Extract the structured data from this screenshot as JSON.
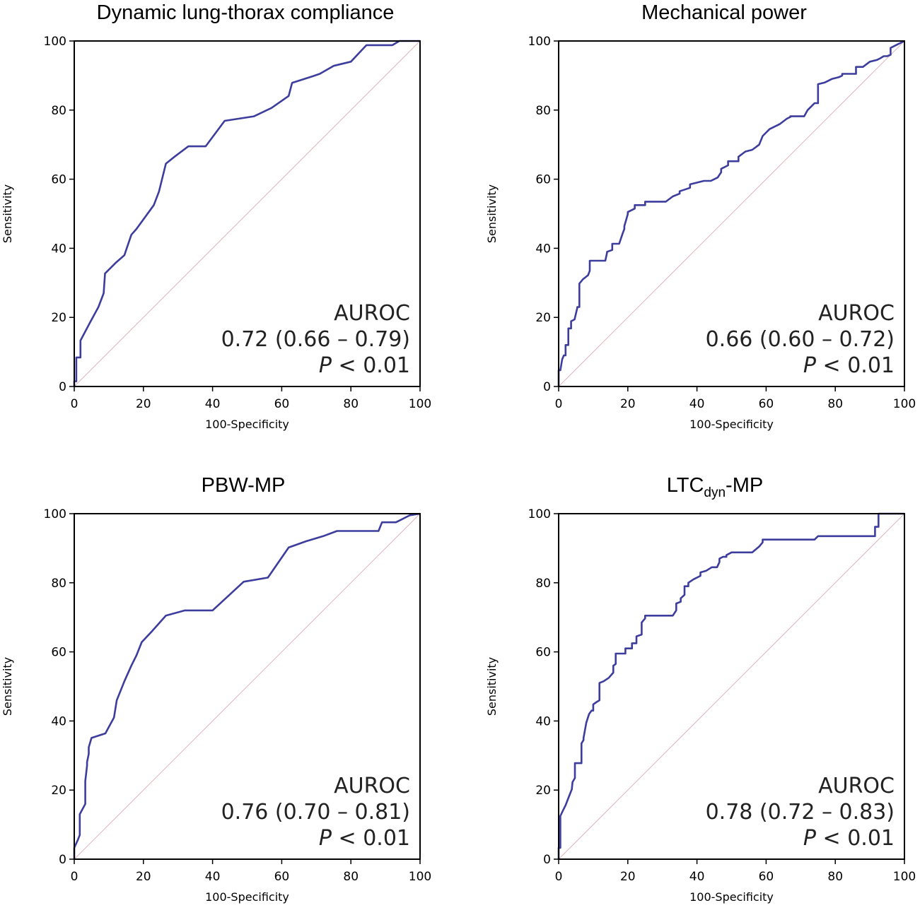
{
  "colors": {
    "roc": "#3d3d9e",
    "reference": "#e0b8c0"
  },
  "chart_data": [
    {
      "type": "line",
      "title": "Dynamic lung-thorax compliance",
      "xlabel": "100-Specificity",
      "ylabel": "Sensitivity",
      "xlim": [
        0,
        100
      ],
      "ylim": [
        0,
        100
      ],
      "xticks": [
        "0",
        "20",
        "40",
        "60",
        "80",
        "100"
      ],
      "yticks": [
        "0",
        "20",
        "40",
        "60",
        "80",
        "100"
      ],
      "annotation": {
        "label": "AUROC",
        "value": "0.72 (0.66 – 0.79)",
        "p_symbol": "P",
        "p_rest": " < 0.01"
      },
      "series": [
        {
          "name": "ROC",
          "x": [
            0,
            0,
            0.6,
            0.6,
            1.8,
            1.8,
            4.5,
            7,
            8.5,
            8.9,
            12,
            14.5,
            16.5,
            18,
            23,
            24.5,
            26.5,
            29,
            33,
            38,
            43.5,
            52,
            57,
            62,
            63,
            69,
            71,
            75,
            80,
            84.5,
            92,
            94,
            100
          ],
          "y": [
            0,
            1.5,
            1.5,
            8.4,
            8.4,
            13.3,
            18.4,
            23,
            27,
            32.7,
            35.8,
            38,
            43.9,
            45.6,
            52.5,
            56.4,
            64.5,
            66.5,
            69.5,
            69.5,
            76.9,
            78.2,
            80.6,
            84.1,
            87.9,
            89.8,
            90.5,
            92.8,
            94,
            98.8,
            98.8,
            100,
            100
          ]
        },
        {
          "name": "reference",
          "x": [
            0,
            100
          ],
          "y": [
            0,
            100
          ]
        }
      ]
    },
    {
      "type": "line",
      "title": "Mechanical power",
      "xlabel": "100-Specificity",
      "ylabel": "Sensitivity",
      "xlim": [
        0,
        100
      ],
      "ylim": [
        0,
        100
      ],
      "xticks": [
        "0",
        "20",
        "40",
        "60",
        "80",
        "100"
      ],
      "yticks": [
        "0",
        "20",
        "40",
        "60",
        "80",
        "100"
      ],
      "annotation": {
        "label": "AUROC",
        "value": "0.66 (0.60 – 0.72)",
        "p_symbol": "P",
        "p_rest": " < 0.01"
      },
      "series": [
        {
          "name": "ROC",
          "x": [
            0,
            0,
            0.5,
            1,
            1.5,
            2,
            2,
            2.8,
            2.8,
            3.6,
            3.6,
            4.6,
            4.6,
            5.4,
            5.4,
            6,
            6,
            7,
            8.5,
            9,
            9,
            13.5,
            14,
            14,
            15.5,
            15.5,
            17.5,
            18.5,
            19,
            19,
            20,
            20,
            22,
            22,
            25,
            25,
            31,
            33,
            35,
            35,
            38,
            38,
            42,
            44,
            46,
            47,
            47,
            49,
            49,
            52,
            52,
            54,
            56,
            58,
            59,
            61,
            62,
            64,
            66,
            67,
            67,
            71,
            72,
            74,
            75,
            75,
            77,
            79,
            81,
            82,
            82,
            86,
            86,
            88,
            90,
            92,
            93,
            94,
            95,
            96,
            96,
            97,
            100
          ],
          "y": [
            0,
            4.7,
            4.7,
            7.8,
            9,
            9,
            12,
            12,
            16.8,
            16.8,
            18.9,
            19.4,
            19.4,
            22.8,
            23,
            23,
            29.8,
            31,
            32.2,
            33.5,
            36.4,
            36.4,
            38.8,
            39,
            39.5,
            41.3,
            41.3,
            44.3,
            45.6,
            46.4,
            49.9,
            50.5,
            51.5,
            52.5,
            52.5,
            53.5,
            53.5,
            55,
            55.8,
            56.5,
            57.5,
            58.5,
            59.5,
            59.5,
            60.5,
            62,
            63,
            64,
            65.2,
            65.2,
            66.5,
            68,
            68.5,
            70,
            72.5,
            74.5,
            75,
            76,
            77.5,
            78,
            78.2,
            78.2,
            80,
            82,
            82,
            87.5,
            88,
            89,
            89.5,
            90,
            90.5,
            90.5,
            92.5,
            92.5,
            94,
            94.5,
            95,
            95.6,
            95.6,
            96,
            98,
            98.5,
            100
          ]
        },
        {
          "name": "reference",
          "x": [
            0,
            100
          ],
          "y": [
            0,
            100
          ]
        }
      ]
    },
    {
      "type": "line",
      "title": "PBW-MP",
      "xlabel": "100-Specificity",
      "ylabel": "Sensitivity",
      "xlim": [
        0,
        100
      ],
      "ylim": [
        0,
        100
      ],
      "xticks": [
        "0",
        "20",
        "40",
        "60",
        "80",
        "100"
      ],
      "yticks": [
        "0",
        "20",
        "40",
        "60",
        "80",
        "100"
      ],
      "annotation": {
        "label": "AUROC",
        "value": "0.76 (0.70 – 0.81)",
        "p_symbol": "P",
        "p_rest": " < 0.01"
      },
      "series": [
        {
          "name": "ROC",
          "x": [
            0,
            0,
            1,
            1.6,
            1.6,
            3.2,
            3.2,
            3.7,
            3.7,
            4.2,
            4.2,
            5,
            9,
            11.5,
            12.3,
            14.5,
            16.5,
            18,
            19.5,
            22.5,
            26.5,
            32,
            40,
            49,
            56,
            62,
            67,
            72,
            76,
            79,
            83,
            88,
            89,
            93,
            94,
            97,
            100
          ],
          "y": [
            0,
            3.3,
            5.5,
            7,
            13,
            16,
            22.6,
            27.1,
            28.1,
            30.5,
            32.4,
            35.1,
            36.4,
            41,
            46,
            51.5,
            56,
            59,
            62.8,
            66,
            70.5,
            72,
            72,
            80.3,
            81.5,
            90.2,
            92,
            93.5,
            95,
            95,
            95,
            95,
            97.5,
            97.5,
            98,
            99.5,
            100
          ]
        },
        {
          "name": "reference",
          "x": [
            0,
            100
          ],
          "y": [
            0,
            100
          ]
        }
      ]
    },
    {
      "type": "line",
      "title": "LTC",
      "title_sub": "dyn",
      "title_tail": "-MP",
      "xlabel": "100-Specificity",
      "ylabel": "Sensitivity",
      "xlim": [
        0,
        100
      ],
      "ylim": [
        0,
        100
      ],
      "xticks": [
        "0",
        "20",
        "40",
        "60",
        "80",
        "100"
      ],
      "yticks": [
        "0",
        "20",
        "40",
        "60",
        "80",
        "100"
      ],
      "annotation": {
        "label": "AUROC",
        "value": "0.78 (0.72 – 0.83)",
        "p_symbol": "P",
        "p_rest": " < 0.01"
      },
      "series": [
        {
          "name": "ROC",
          "x": [
            0,
            0,
            0.5,
            0.5,
            1.2,
            2,
            3,
            3.8,
            4,
            4.7,
            4.7,
            6.6,
            6.6,
            7.2,
            7.2,
            8,
            8.8,
            9.5,
            10,
            10,
            11,
            11.8,
            11.8,
            13,
            14.5,
            15.8,
            15.8,
            16.5,
            16.5,
            19.3,
            19.3,
            21.2,
            21.2,
            22.5,
            22.5,
            24,
            24,
            25,
            25,
            33,
            34,
            34,
            35.3,
            35.3,
            36.4,
            36.4,
            37.5,
            37.5,
            39,
            41,
            41,
            42.7,
            44.3,
            45.8,
            46.5,
            46.5,
            47.5,
            48.5,
            48.5,
            50,
            56,
            58,
            59,
            59,
            74,
            75,
            87,
            91.5,
            91.5,
            92.5,
            92.5,
            100
          ],
          "y": [
            0,
            3.3,
            3.3,
            12.5,
            14,
            15.6,
            18.2,
            20.2,
            22.3,
            23.5,
            27.8,
            27.8,
            33.5,
            34.5,
            35.1,
            39.5,
            42,
            43,
            43,
            44.8,
            45.5,
            46,
            51,
            51.5,
            52.5,
            54,
            56,
            56.5,
            59.5,
            59.5,
            61,
            61,
            62.5,
            62.5,
            64.5,
            65,
            68.5,
            69.7,
            70.5,
            70.5,
            72,
            74,
            74.5,
            75.5,
            76.5,
            79,
            79,
            80,
            81,
            82,
            83,
            83.5,
            84.5,
            84.5,
            86,
            87,
            87.5,
            87.5,
            88,
            88.8,
            88.8,
            90.5,
            91.7,
            92.5,
            92.5,
            93.5,
            93.5,
            93.5,
            96.2,
            96.2,
            100,
            100
          ]
        },
        {
          "name": "reference",
          "x": [
            0,
            100
          ],
          "y": [
            0,
            100
          ]
        }
      ]
    }
  ]
}
